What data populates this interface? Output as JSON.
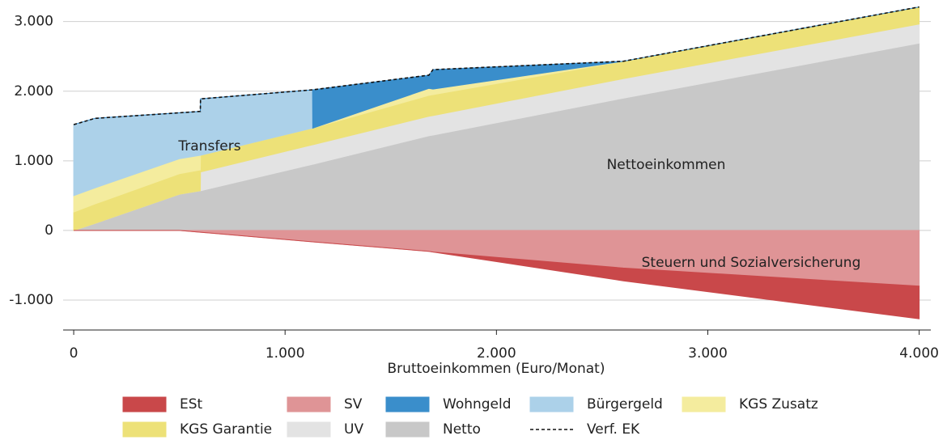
{
  "chart_data": {
    "type": "area",
    "xlabel": "Bruttoeinkommen (Euro/Monat)",
    "x": [
      0,
      100,
      500,
      599,
      600,
      1130,
      1131,
      1680,
      1700,
      2600,
      4000
    ],
    "series": [
      {
        "name": "ESt",
        "type": "area",
        "color": "#c9484a",
        "values": [
          0,
          0,
          0,
          0,
          0,
          0,
          0,
          0,
          0,
          -184,
          -470
        ]
      },
      {
        "name": "SV",
        "type": "area",
        "color": "#df9496",
        "values": [
          0,
          0,
          0,
          -26,
          -26,
          -163,
          -163,
          -300,
          -310,
          -540,
          -800
        ]
      },
      {
        "name": "Wohngeld",
        "type": "area",
        "color": "#3a8ecb",
        "values": [
          0,
          0,
          0,
          0,
          0,
          0,
          550,
          190,
          280,
          0,
          0
        ]
      },
      {
        "name": "Bürgergeld",
        "type": "area",
        "color": "#acd1e9",
        "values": [
          1020,
          1000,
          660,
          630,
          810,
          550,
          0,
          0,
          0,
          0,
          0
        ]
      },
      {
        "name": "KGS Zusatz",
        "type": "area",
        "color": "#f4ec9e",
        "values": [
          235,
          230,
          215,
          210,
          0,
          0,
          0,
          100,
          80,
          0,
          0
        ]
      },
      {
        "name": "KGS Garantie",
        "type": "area",
        "color": "#ede178",
        "values": [
          265,
          280,
          295,
          300,
          240,
          240,
          240,
          300,
          300,
          250,
          245
        ]
      },
      {
        "name": "UV",
        "type": "area",
        "color": "#e3e3e3",
        "values": [
          0,
          0,
          0,
          0,
          270,
          280,
          280,
          280,
          280,
          280,
          275
        ]
      },
      {
        "name": "Netto",
        "type": "area",
        "color": "#c8c8c8",
        "values": [
          0,
          100,
          520,
          570,
          570,
          950,
          950,
          1360,
          1370,
          1900,
          2690
        ]
      },
      {
        "name": "Verf. EK",
        "type": "line",
        "color": "#111111",
        "dashed": true,
        "values": [
          1520,
          1610,
          1690,
          1710,
          1890,
          2020,
          2020,
          2230,
          2310,
          2430,
          3210
        ]
      }
    ],
    "annotations": [
      "Transfers",
      "Nettoeinkommen",
      "Steuern und Sozialversicherung"
    ],
    "xlim": [
      -50,
      4055
    ],
    "ylim": [
      -1430,
      3310
    ],
    "xticks": [
      0,
      {
        "value": 1000,
        "label": "1.000"
      },
      {
        "value": 2000,
        "label": "2.000"
      },
      {
        "value": 3000,
        "label": "3.000"
      },
      {
        "value": 4000,
        "label": "4.000"
      }
    ],
    "yticks": [
      {
        "value": -1000,
        "label": "-1.000"
      },
      0,
      {
        "value": 1000,
        "label": "1.000"
      },
      {
        "value": 2000,
        "label": "2.000"
      },
      {
        "value": 3000,
        "label": "3.000"
      }
    ],
    "grid": true
  }
}
